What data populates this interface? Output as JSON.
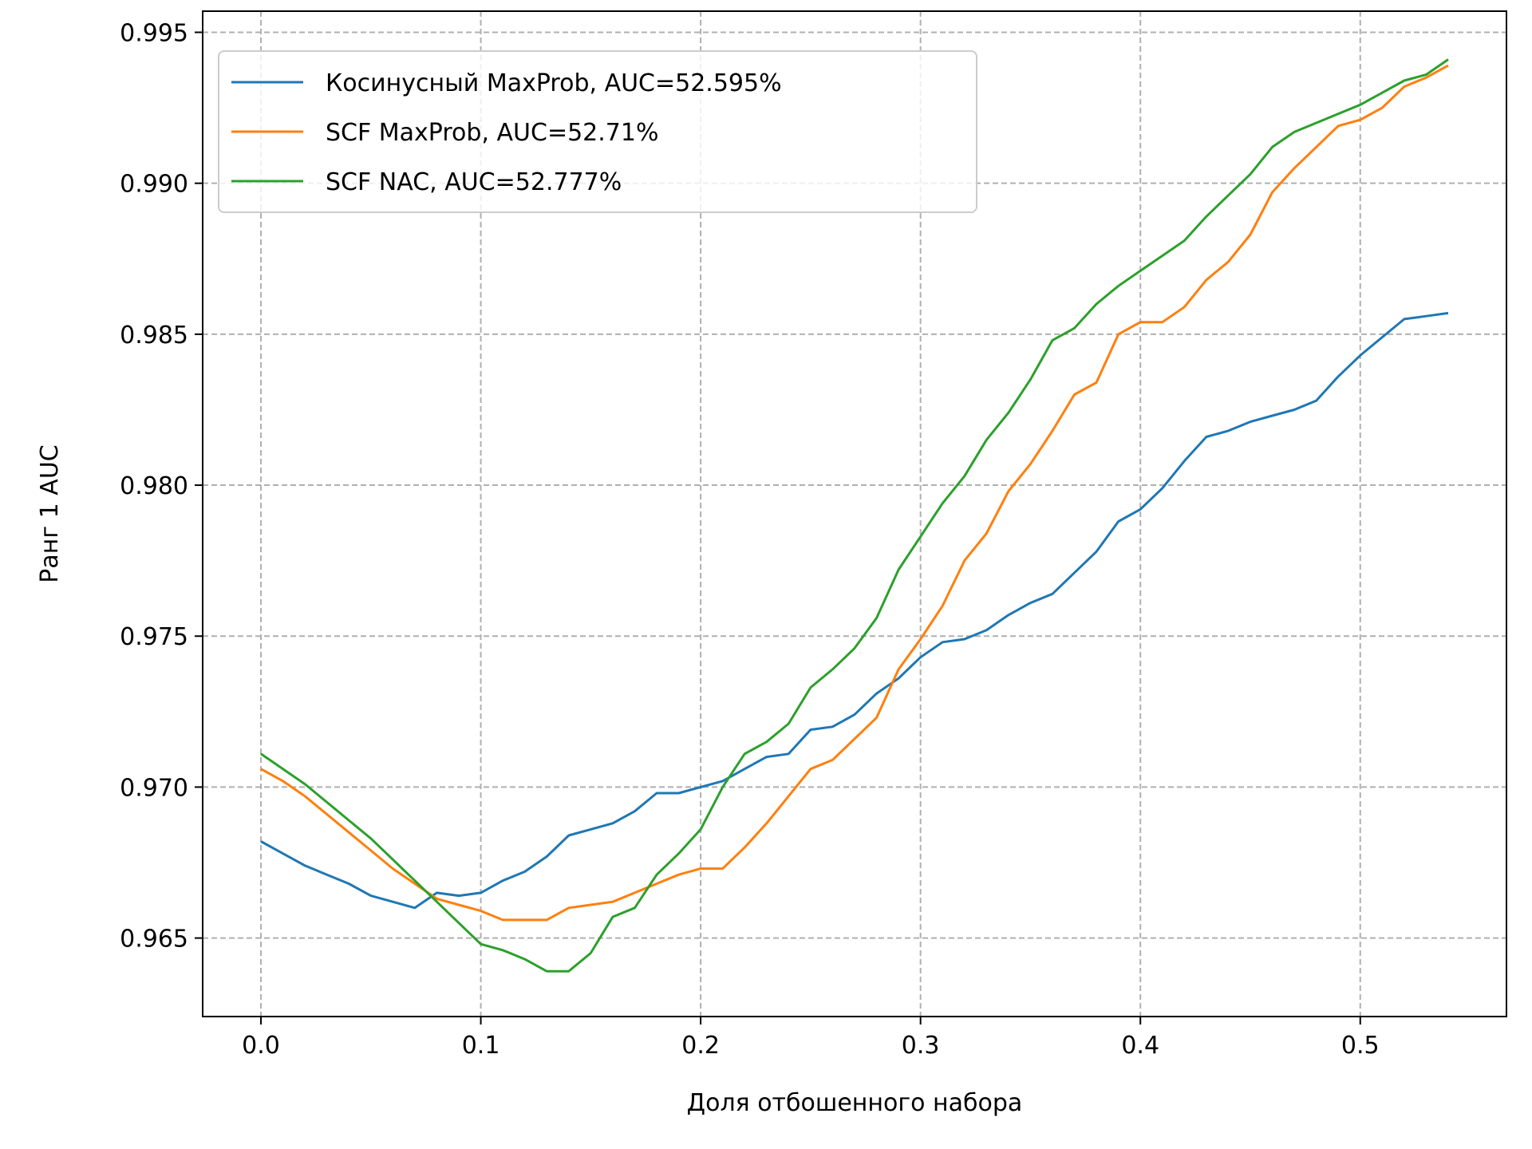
{
  "chart_data": {
    "type": "line",
    "xlabel": "Доля отбошенного набора",
    "ylabel": "Ранг 1 AUC",
    "xlim": [
      -0.0265,
      0.5665
    ],
    "ylim": [
      0.9624,
      0.9957
    ],
    "xticks": [
      0.0,
      0.1,
      0.2,
      0.3,
      0.4,
      0.5
    ],
    "xtick_labels": [
      "0.0",
      "0.1",
      "0.2",
      "0.3",
      "0.4",
      "0.5"
    ],
    "yticks": [
      0.965,
      0.97,
      0.975,
      0.98,
      0.985,
      0.99,
      0.995
    ],
    "ytick_labels": [
      "0.965",
      "0.970",
      "0.975",
      "0.980",
      "0.985",
      "0.990",
      "0.995"
    ],
    "grid": true,
    "legend_position": "top-left",
    "x": [
      0.0,
      0.01,
      0.02,
      0.03,
      0.04,
      0.05,
      0.06,
      0.07,
      0.08,
      0.09,
      0.1,
      0.11,
      0.12,
      0.13,
      0.14,
      0.15,
      0.16,
      0.17,
      0.18,
      0.19,
      0.2,
      0.21,
      0.22,
      0.23,
      0.24,
      0.25,
      0.26,
      0.27,
      0.28,
      0.29,
      0.3,
      0.31,
      0.32,
      0.33,
      0.34,
      0.35,
      0.36,
      0.37,
      0.38,
      0.39,
      0.4,
      0.41,
      0.42,
      0.43,
      0.44,
      0.45,
      0.46,
      0.47,
      0.48,
      0.49,
      0.5,
      0.51,
      0.52,
      0.53,
      0.54
    ],
    "series": [
      {
        "name": "Косинусный MaxProb, AUC=52.595%",
        "color": "#1f77b4",
        "values": [
          0.9682,
          0.9678,
          0.9674,
          0.9671,
          0.9668,
          0.9664,
          0.9662,
          0.966,
          0.9665,
          0.9664,
          0.9665,
          0.9669,
          0.9672,
          0.9677,
          0.9684,
          0.9686,
          0.9688,
          0.9692,
          0.9698,
          0.9698,
          0.97,
          0.9702,
          0.9706,
          0.971,
          0.9711,
          0.9719,
          0.972,
          0.9724,
          0.9731,
          0.9736,
          0.9743,
          0.9748,
          0.9749,
          0.9752,
          0.9757,
          0.9761,
          0.9764,
          0.9771,
          0.9778,
          0.9788,
          0.9792,
          0.9799,
          0.9808,
          0.9816,
          0.9818,
          0.9821,
          0.9823,
          0.9825,
          0.9828,
          0.9836,
          0.9843,
          0.9849,
          0.9855,
          0.9856,
          0.9857
        ]
      },
      {
        "name": "SCF MaxProb, AUC=52.71%",
        "color": "#ff7f0e",
        "values": [
          0.9706,
          0.9702,
          0.9697,
          0.9691,
          0.9685,
          0.9679,
          0.9673,
          0.9668,
          0.9663,
          0.9661,
          0.9659,
          0.9656,
          0.9656,
          0.9656,
          0.966,
          0.9661,
          0.9662,
          0.9665,
          0.9668,
          0.9671,
          0.9673,
          0.9673,
          0.968,
          0.9688,
          0.9697,
          0.9706,
          0.9709,
          0.9716,
          0.9723,
          0.9739,
          0.9749,
          0.976,
          0.9775,
          0.9784,
          0.9798,
          0.9807,
          0.9818,
          0.983,
          0.9834,
          0.985,
          0.9854,
          0.9854,
          0.9859,
          0.9868,
          0.9874,
          0.9883,
          0.9897,
          0.9905,
          0.9912,
          0.9919,
          0.9921,
          0.9925,
          0.9932,
          0.9935,
          0.9939
        ]
      },
      {
        "name": "SCF NAC, AUC=52.777%",
        "color": "#2ca02c",
        "values": [
          0.9711,
          0.9706,
          0.9701,
          0.9695,
          0.9689,
          0.9683,
          0.9676,
          0.9669,
          0.9662,
          0.9655,
          0.9648,
          0.9646,
          0.9643,
          0.9639,
          0.9639,
          0.9645,
          0.9657,
          0.966,
          0.9671,
          0.9678,
          0.9686,
          0.97,
          0.9711,
          0.9715,
          0.9721,
          0.9733,
          0.9739,
          0.9746,
          0.9756,
          0.9772,
          0.9783,
          0.9794,
          0.9803,
          0.9815,
          0.9824,
          0.9835,
          0.9848,
          0.9852,
          0.986,
          0.9866,
          0.9871,
          0.9876,
          0.9881,
          0.9889,
          0.9896,
          0.9903,
          0.9912,
          0.9917,
          0.992,
          0.9923,
          0.9926,
          0.993,
          0.9934,
          0.9936,
          0.9941
        ]
      }
    ]
  }
}
